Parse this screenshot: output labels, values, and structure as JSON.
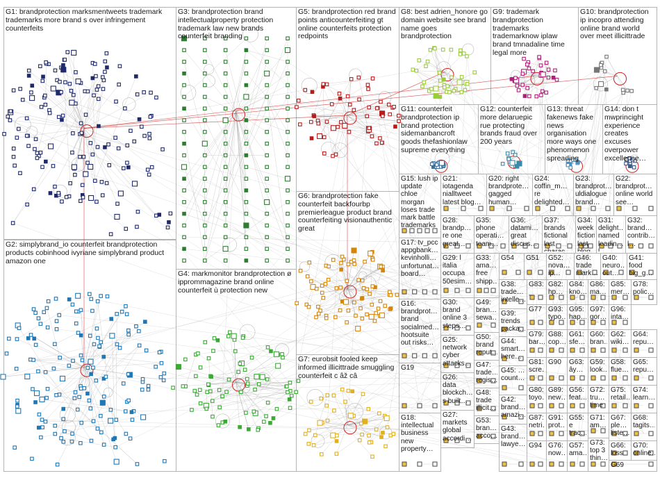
{
  "colors": {
    "box_border": "#b4b4b4",
    "edge": "#9a9a9a",
    "edge_strong": "#d02020",
    "self_loop": "#bbbbbb"
  },
  "groups": [
    {
      "id": "G1",
      "label": "G1: brandprotection marksmentweets trademark trademarks more brand s over infringement counterfeits",
      "color": "#1f2a6b",
      "node_count": 160
    },
    {
      "id": "G2",
      "label": "G2: simplybrand_io counterfeit brandprotection products cobinhood ivyriane simplybrand product amazon one",
      "color": "#1f77b4",
      "node_count": 150
    },
    {
      "id": "G3",
      "label": "G3: brandprotection brand intellectualproperty protection trademark law new brands counterfeit branding",
      "color": "#2e7d32",
      "node_count": 120
    },
    {
      "id": "G4",
      "label": "G4: markmonitor brandprotection ø ipprommagazine brand online counterfeit ù protection new",
      "color": "#3aaa35",
      "node_count": 90
    },
    {
      "id": "G5",
      "label": "G5: brandprotection red brand points anticounterfeiting gt online counterfeits protection redpoints",
      "color": "#b71c1c",
      "node_count": 60
    },
    {
      "id": "G6",
      "label": "G6: brandprotection fake counterfeit backfourbp premierleague product brand counterfeiting visionauthentic great",
      "color": "#d4860b",
      "node_count": 80
    },
    {
      "id": "G7",
      "label": "G7: eurobsit fooled keep informed illicittrade smuggling counterfeit c âž câ",
      "color": "#e0b020",
      "node_count": 45
    },
    {
      "id": "G8",
      "label": "G8: best adrien_honore go domain website see brand name goes brandprotection",
      "color": "#9ccc3c",
      "node_count": 40
    },
    {
      "id": "G9",
      "label": "G9: trademark brandprotection trademarks trademarknow iplaw brand tmnadaline time legal more",
      "color": "#b0217a",
      "node_count": 35
    },
    {
      "id": "G10",
      "label": "G10: brandprotection ip incopro attending online brand world over meet illicittrade",
      "color": "#777777",
      "node_count": 14
    },
    {
      "id": "G11",
      "label": "G11: counterfeit brandprotection ip brand protection sidemanbancroft goods thefashionlaw supreme everything",
      "color": "#3a6e9a",
      "node_count": 12
    },
    {
      "id": "G12",
      "label": "G12: counterfeit more delaruepic rue protecting brands fraud over 200 years",
      "color": "#3a8aa8",
      "node_count": 12
    },
    {
      "id": "G13",
      "label": "G13: threat fakenews fake news organisation more ways one phenomenon spreading",
      "color": "#4a90c0",
      "node_count": 10
    },
    {
      "id": "G14",
      "label": "G14: don t mwprincight experience creates excuses overpower excellence…",
      "color": "#3a5a8a",
      "node_count": 10
    },
    {
      "id": "G15",
      "label": "G15: lush ip update chloe morgan loses trade mark battle trademarks",
      "color": "#555",
      "node_count": 5
    },
    {
      "id": "G16",
      "label": "G16: brandprot… brand socialmed… hootsuite out risks…",
      "color": "#555",
      "node_count": 4
    },
    {
      "id": "G17",
      "label": "G17: tv_pcc appgbank… kevinholli… unfortunat… board…",
      "color": "#555",
      "node_count": 4
    },
    {
      "id": "G18",
      "label": "G18: intellectual business new property…",
      "color": "#555",
      "node_count": 3
    },
    {
      "id": "G19",
      "label": "G19",
      "color": "#555",
      "node_count": 3
    },
    {
      "id": "G20",
      "label": "G20: right brandprote… gagged human…",
      "color": "#555",
      "node_count": 3
    },
    {
      "id": "G21",
      "label": "G21: iotagenda nialltweet latest blog…",
      "color": "#555",
      "node_count": 3
    },
    {
      "id": "G22",
      "label": "G22: brandprot… online world see…",
      "color": "#555",
      "node_count": 3
    },
    {
      "id": "G23",
      "label": "G23: brandprot… uldialogue brand…",
      "color": "#555",
      "node_count": 3
    },
    {
      "id": "G24",
      "label": "G24: coffin_m… re delighted…",
      "color": "#555",
      "node_count": 3
    },
    {
      "id": "G25",
      "label": "G25: network cyber attacks…",
      "color": "#555",
      "node_count": 3
    },
    {
      "id": "G26",
      "label": "G26: data blockch… s built…",
      "color": "#555",
      "node_count": 3
    },
    {
      "id": "G27",
      "label": "G27: markets global accordi…",
      "color": "#555",
      "node_count": 3
    },
    {
      "id": "G28",
      "label": "G28: brandp… re one great…",
      "color": "#555",
      "node_count": 3
    },
    {
      "id": "G29",
      "label": "G29: l italia occupa 50esim…",
      "color": "#555",
      "node_count": 3
    },
    {
      "id": "G30",
      "label": "G30: brand online 3 steps…",
      "color": "#555",
      "node_count": 3
    },
    {
      "id": "G31",
      "label": "G31: delight… named leadin… l…",
      "color": "#555",
      "node_count": 3
    },
    {
      "id": "G32",
      "label": "G32: brand… contrib… l…",
      "color": "#555",
      "node_count": 3
    },
    {
      "id": "G33",
      "label": "G33: ama… free shipp…",
      "color": "#555",
      "node_count": 3
    },
    {
      "id": "G34",
      "label": "G34: week fictional last blog…",
      "color": "#555",
      "node_count": 3
    },
    {
      "id": "G35",
      "label": "G35: phone operati… team…",
      "color": "#555",
      "node_count": 3
    },
    {
      "id": "G36",
      "label": "G36: datami… great discus…",
      "color": "#555",
      "node_count": 3
    },
    {
      "id": "G37",
      "label": "G37: brands fictional last charac…",
      "color": "#555",
      "node_count": 3
    },
    {
      "id": "G38",
      "label": "G38: trade… intelle…",
      "color": "#555",
      "node_count": 2
    },
    {
      "id": "G39",
      "label": "G39: trends packa…",
      "color": "#555",
      "node_count": 2
    },
    {
      "id": "G40",
      "label": "G40: neuro… out…",
      "color": "#555",
      "node_count": 2
    },
    {
      "id": "G41",
      "label": "G41: food big_g…",
      "color": "#555",
      "node_count": 2
    },
    {
      "id": "G42",
      "label": "G42: brand… amazi…",
      "color": "#555",
      "node_count": 2
    },
    {
      "id": "G43",
      "label": "G43: brand… lawye…",
      "color": "#555",
      "node_count": 2
    },
    {
      "id": "G44",
      "label": "G44: smart… here…",
      "color": "#555",
      "node_count": 2
    },
    {
      "id": "G45",
      "label": "G45: … count…",
      "color": "#555",
      "node_count": 2
    },
    {
      "id": "G46",
      "label": "G46: trade mark…",
      "color": "#555",
      "node_count": 2
    },
    {
      "id": "G47",
      "label": "G47: trade… regis…",
      "color": "#555",
      "node_count": 2
    },
    {
      "id": "G48",
      "label": "G48: trade illicit…",
      "color": "#555",
      "node_count": 2
    },
    {
      "id": "G49",
      "label": "G49: bran… sewa…",
      "color": "#555",
      "node_count": 2
    },
    {
      "id": "G50",
      "label": "G50: brand reput…",
      "color": "#555",
      "node_count": 2
    },
    {
      "id": "G51",
      "label": "G51",
      "color": "#555",
      "node_count": 2
    },
    {
      "id": "G52",
      "label": "G52: nova… ip…",
      "color": "#555",
      "node_count": 2
    },
    {
      "id": "G53",
      "label": "G53: bran… acco…",
      "color": "#555",
      "node_count": 2
    },
    {
      "id": "G54",
      "label": "G54",
      "color": "#555",
      "node_count": 2
    },
    {
      "id": "G55",
      "label": "G55: e trac…",
      "color": "#555",
      "node_count": 2
    },
    {
      "id": "G56",
      "label": "G56: feat…",
      "color": "#555",
      "node_count": 2
    },
    {
      "id": "G57",
      "label": "G57: ama…",
      "color": "#555",
      "node_count": 2
    },
    {
      "id": "G58",
      "label": "G58: flue…",
      "color": "#555",
      "node_count": 2
    },
    {
      "id": "G59",
      "label": "G59: look…",
      "color": "#555",
      "node_count": 2
    },
    {
      "id": "G60",
      "label": "G60: bran…",
      "color": "#555",
      "node_count": 2
    },
    {
      "id": "G61",
      "label": "G61: sfe…",
      "color": "#555",
      "node_count": 2
    },
    {
      "id": "G62",
      "label": "G62: wiki…",
      "color": "#555",
      "node_count": 2
    },
    {
      "id": "G63",
      "label": "G63: ây…",
      "color": "#555",
      "node_count": 2
    },
    {
      "id": "G64",
      "label": "G64: repu…",
      "color": "#555",
      "node_count": 2
    },
    {
      "id": "G65",
      "label": "G65: repu…",
      "color": "#555",
      "node_count": 2
    },
    {
      "id": "G66",
      "label": "G66: loss cou…",
      "color": "#555",
      "node_count": 2
    },
    {
      "id": "G67",
      "label": "G67: ple… liste…",
      "color": "#555",
      "node_count": 2
    },
    {
      "id": "G68",
      "label": "G68: tagits…",
      "color": "#555",
      "node_count": 2
    },
    {
      "id": "G69",
      "label": "G69",
      "color": "#555",
      "node_count": 2
    },
    {
      "id": "G70",
      "label": "G70: online…",
      "color": "#555",
      "node_count": 2
    },
    {
      "id": "G71",
      "label": "G71: am…",
      "color": "#555",
      "node_count": 2
    },
    {
      "id": "G72",
      "label": "G72: tru… time",
      "color": "#555",
      "node_count": 2
    },
    {
      "id": "G73",
      "label": "G73: top 3 thin…",
      "color": "#555",
      "node_count": 2
    },
    {
      "id": "G74",
      "label": "G74: learn…",
      "color": "#555",
      "node_count": 2
    },
    {
      "id": "G75",
      "label": "G75: retail…",
      "color": "#555",
      "node_count": 2
    },
    {
      "id": "G76",
      "label": "G76: now…",
      "color": "#555",
      "node_count": 2
    },
    {
      "id": "G77",
      "label": "G77",
      "color": "#555",
      "node_count": 2
    },
    {
      "id": "G78",
      "label": "G78: polic…",
      "color": "#555",
      "node_count": 2
    },
    {
      "id": "G79",
      "label": "G79: bar…",
      "color": "#555",
      "node_count": 2
    },
    {
      "id": "G80",
      "label": "G80: toyo…",
      "color": "#555",
      "node_count": 2
    },
    {
      "id": "G81",
      "label": "G81: scre…",
      "color": "#555",
      "node_count": 2
    },
    {
      "id": "G82",
      "label": "G82: hp…",
      "color": "#555",
      "node_count": 2
    },
    {
      "id": "G83",
      "label": "G83: _",
      "color": "#555",
      "node_count": 2
    },
    {
      "id": "G84",
      "label": "G84: kno…",
      "color": "#555",
      "node_count": 2
    },
    {
      "id": "G85",
      "label": "G85: mer…",
      "color": "#555",
      "node_count": 2
    },
    {
      "id": "G86",
      "label": "G86: ma…",
      "color": "#555",
      "node_count": 2
    },
    {
      "id": "G87",
      "label": "G87: netri…",
      "color": "#555",
      "node_count": 2
    },
    {
      "id": "G88",
      "label": "G88: cop…",
      "color": "#555",
      "node_count": 2
    },
    {
      "id": "G89",
      "label": "G89: new…",
      "color": "#555",
      "node_count": 2
    },
    {
      "id": "G90",
      "label": "G90",
      "color": "#555",
      "node_count": 2
    },
    {
      "id": "G91",
      "label": "G91: prot…",
      "color": "#555",
      "node_count": 2
    },
    {
      "id": "G92",
      "label": "G92: new…",
      "color": "#555",
      "node_count": 2
    },
    {
      "id": "G93",
      "label": "G93: typo…",
      "color": "#555",
      "node_count": 2
    },
    {
      "id": "G94",
      "label": "G94",
      "color": "#555",
      "node_count": 2
    },
    {
      "id": "G95",
      "label": "G95: hap…",
      "color": "#555",
      "node_count": 2
    },
    {
      "id": "G96",
      "label": "G96: inta…",
      "color": "#555",
      "node_count": 2
    },
    {
      "id": "G97",
      "label": "G97: gor…",
      "color": "#555",
      "node_count": 2
    }
  ]
}
